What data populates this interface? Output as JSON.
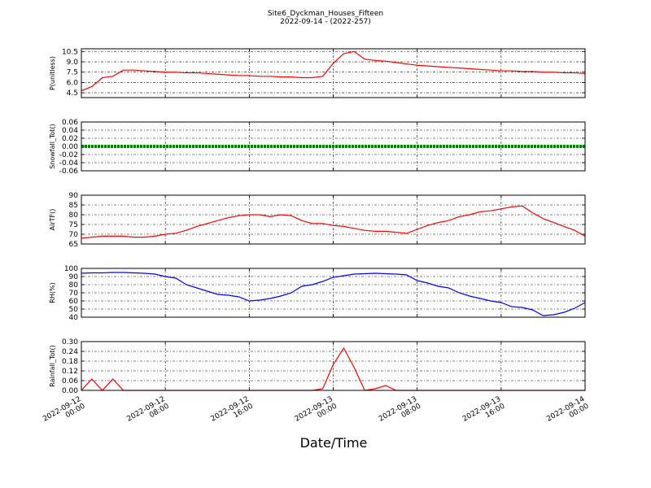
{
  "title": "Site6_Dyckman_Houses_Fifteen",
  "subtitle": "2022-09-14 - (2022-257)",
  "xlabel": "Date/Time",
  "xlim": [
    "2022-09-12 00:00",
    "2022-09-14 00:00"
  ],
  "xticks": [
    "2022-09-12 00:00",
    "2022-09-12 08:00",
    "2022-09-12 16:00",
    "2022-09-13 00:00",
    "2022-09-13 08:00",
    "2022-09-13 16:00",
    "2022-09-14 00:00"
  ],
  "x": [
    "2022-09-12 00:00",
    "2022-09-12 01:00",
    "2022-09-12 02:00",
    "2022-09-12 03:00",
    "2022-09-12 04:00",
    "2022-09-12 05:00",
    "2022-09-12 06:00",
    "2022-09-12 07:00",
    "2022-09-12 08:00",
    "2022-09-12 09:00",
    "2022-09-12 10:00",
    "2022-09-12 11:00",
    "2022-09-12 12:00",
    "2022-09-12 13:00",
    "2022-09-12 14:00",
    "2022-09-12 15:00",
    "2022-09-12 16:00",
    "2022-09-12 17:00",
    "2022-09-12 18:00",
    "2022-09-12 19:00",
    "2022-09-12 20:00",
    "2022-09-12 21:00",
    "2022-09-12 22:00",
    "2022-09-12 23:00",
    "2022-09-13 00:00",
    "2022-09-13 01:00",
    "2022-09-13 02:00",
    "2022-09-13 03:00",
    "2022-09-13 04:00",
    "2022-09-13 05:00",
    "2022-09-13 06:00",
    "2022-09-13 07:00",
    "2022-09-13 08:00",
    "2022-09-13 09:00",
    "2022-09-13 10:00",
    "2022-09-13 11:00",
    "2022-09-13 12:00",
    "2022-09-13 13:00",
    "2022-09-13 14:00",
    "2022-09-13 15:00",
    "2022-09-13 16:00",
    "2022-09-13 17:00",
    "2022-09-13 18:00",
    "2022-09-13 19:00",
    "2022-09-13 20:00",
    "2022-09-13 21:00",
    "2022-09-13 22:00",
    "2022-09-13 23:00",
    "2022-09-14 00:00"
  ],
  "chart_data": [
    {
      "type": "line",
      "ylabel": "P(unitless)",
      "ylim": [
        3.8,
        10.9
      ],
      "grid": true,
      "yticks": [
        4.5,
        {
          "value": 6.0,
          "label": "6.0"
        },
        7.5,
        {
          "value": 9.0,
          "label": "9.0"
        },
        10.5
      ],
      "series": [
        {
          "color": "#ff0000",
          "values": [
            4.8,
            5.4,
            6.7,
            6.9,
            7.8,
            7.8,
            7.7,
            7.6,
            7.5,
            7.5,
            7.4,
            7.4,
            7.3,
            7.2,
            7.1,
            7.0,
            7.0,
            6.9,
            6.9,
            6.8,
            6.8,
            6.7,
            6.7,
            6.9,
            8.8,
            10.2,
            10.5,
            9.4,
            9.2,
            9.1,
            8.9,
            8.7,
            8.5,
            8.4,
            8.3,
            8.2,
            8.1,
            8.0,
            7.9,
            7.8,
            7.7,
            7.7,
            7.6,
            7.6,
            7.5,
            7.5,
            7.4,
            7.4,
            7.3
          ]
        }
      ]
    },
    {
      "type": "line",
      "ylabel": "Snowfall_Tot()",
      "ylim": [
        -0.06,
        0.06
      ],
      "grid": true,
      "yticks": [
        -0.06,
        -0.04,
        -0.02,
        {
          "value": 0,
          "label": "0.00"
        },
        0.02,
        0.04,
        0.06
      ],
      "series": [
        {
          "color": "#008000",
          "values": [
            0,
            0,
            0,
            0,
            0,
            0,
            0,
            0,
            0,
            0,
            0,
            0,
            0,
            0,
            0,
            0,
            0,
            0,
            0,
            0,
            0,
            0,
            0,
            0,
            0,
            0,
            0,
            0,
            0,
            0,
            0,
            0,
            0,
            0,
            0,
            0,
            0,
            0,
            0,
            0,
            0,
            0,
            0,
            0,
            0,
            0,
            0,
            0,
            0
          ]
        }
      ]
    },
    {
      "type": "line",
      "ylabel": "AirTF()",
      "ylim": [
        65,
        90
      ],
      "grid": true,
      "yticks": [
        65,
        70,
        75,
        80,
        85,
        90
      ],
      "series": [
        {
          "color": "#ff0000",
          "values": [
            68,
            68.5,
            69,
            69,
            69,
            68.5,
            68.5,
            69,
            70,
            70.5,
            72,
            74,
            75.5,
            77,
            78.5,
            79.5,
            80,
            80,
            79,
            80,
            79.5,
            77,
            75.5,
            75.5,
            74.5,
            74,
            73,
            72,
            71.5,
            71.5,
            71,
            70.5,
            72.5,
            74.5,
            76,
            77,
            79,
            80,
            81.5,
            82,
            83,
            84,
            84.5,
            81,
            78,
            76,
            74,
            72,
            69
          ]
        }
      ]
    },
    {
      "type": "line",
      "ylabel": "RH(%)",
      "ylim": [
        40,
        100
      ],
      "grid": true,
      "yticks": [
        40,
        50,
        60,
        70,
        80,
        90,
        100
      ],
      "series": [
        {
          "color": "#0000ff",
          "values": [
            94,
            94.5,
            94.5,
            95,
            95,
            94.5,
            94,
            93,
            90,
            88,
            80,
            76,
            72,
            68,
            67,
            65,
            60,
            61,
            63,
            66,
            70,
            78,
            80,
            84,
            89,
            91,
            93,
            93.5,
            94,
            93.5,
            93,
            92,
            85,
            82,
            78,
            76,
            70,
            66,
            63,
            60,
            58,
            53,
            52,
            49,
            42,
            43,
            46,
            51,
            58
          ]
        }
      ]
    },
    {
      "type": "line",
      "ylabel": "Rainfall_Tot()",
      "ylim": [
        0,
        0.3
      ],
      "grid": true,
      "yticks": [
        {
          "value": 0,
          "label": "0.00"
        },
        0.06,
        0.12,
        0.18,
        0.24,
        {
          "value": 0.3,
          "label": "0.30"
        }
      ],
      "series": [
        {
          "color": "#ff0000",
          "values": [
            0,
            0.07,
            0,
            0.07,
            0,
            0,
            0,
            0,
            0,
            0,
            0,
            0,
            0,
            0,
            0,
            0,
            0,
            0,
            0,
            0,
            0,
            0,
            0,
            0.01,
            0.16,
            0.26,
            0.14,
            0,
            0.01,
            0.03,
            0,
            0,
            0,
            0,
            0,
            0,
            0,
            0,
            0,
            0,
            0,
            0,
            0,
            0,
            0,
            0,
            0,
            0,
            0
          ]
        }
      ]
    }
  ]
}
